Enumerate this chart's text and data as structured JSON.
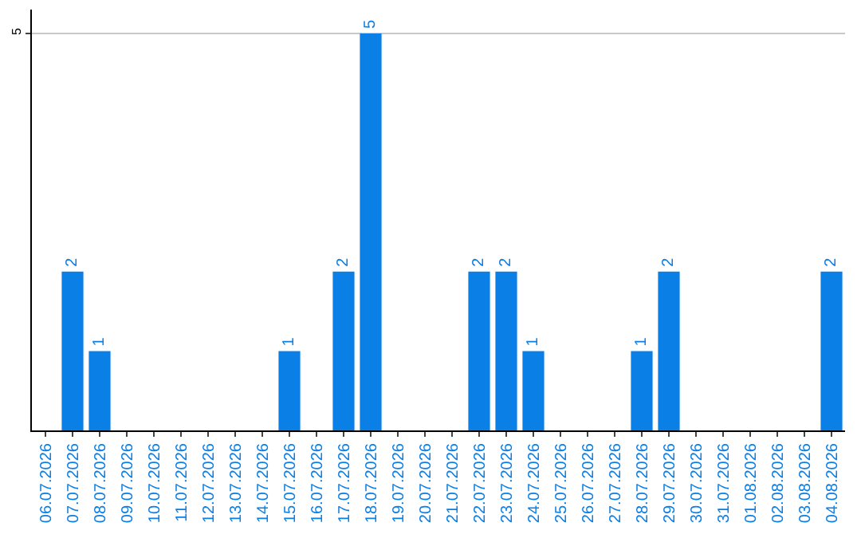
{
  "chart_data": {
    "type": "bar",
    "categories": [
      "06.07.2026",
      "07.07.2026",
      "08.07.2026",
      "09.07.2026",
      "10.07.2026",
      "11.07.2026",
      "12.07.2026",
      "13.07.2026",
      "14.07.2026",
      "15.07.2026",
      "16.07.2026",
      "17.07.2026",
      "18.07.2026",
      "19.07.2026",
      "20.07.2026",
      "21.07.2026",
      "22.07.2026",
      "23.07.2026",
      "24.07.2026",
      "25.07.2026",
      "26.07.2026",
      "27.07.2026",
      "28.07.2026",
      "29.07.2026",
      "30.07.2026",
      "31.07.2026",
      "01.08.2026",
      "02.08.2026",
      "03.08.2026",
      "04.08.2026"
    ],
    "values": [
      0,
      2,
      1,
      0,
      0,
      0,
      0,
      0,
      0,
      1,
      0,
      2,
      5,
      0,
      0,
      0,
      2,
      2,
      1,
      0,
      0,
      0,
      1,
      2,
      0,
      0,
      0,
      0,
      0,
      2
    ],
    "value_labels": [
      null,
      "2",
      "1",
      null,
      null,
      null,
      null,
      null,
      null,
      "1",
      null,
      "2",
      "5",
      null,
      null,
      null,
      "2",
      "2",
      "1",
      null,
      null,
      null,
      "1",
      "2",
      null,
      null,
      null,
      null,
      null,
      "2"
    ],
    "color": "#0a7fe6",
    "ylim": [
      0,
      5.3
    ],
    "yticks": [
      5
    ],
    "grid": "y",
    "legend": false
  }
}
